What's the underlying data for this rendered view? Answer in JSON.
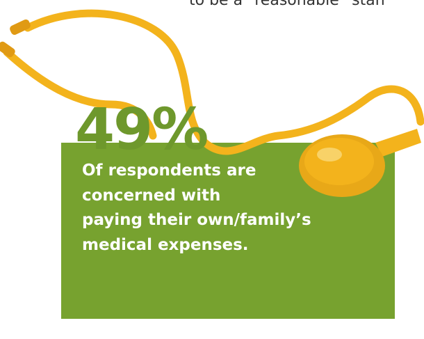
{
  "top_text": "to be a “reasonable” stan",
  "stat": "49%",
  "description_lines": [
    "Of respondents are",
    "concerned with",
    "paying their own/family’s",
    "medical expenses."
  ]
}
